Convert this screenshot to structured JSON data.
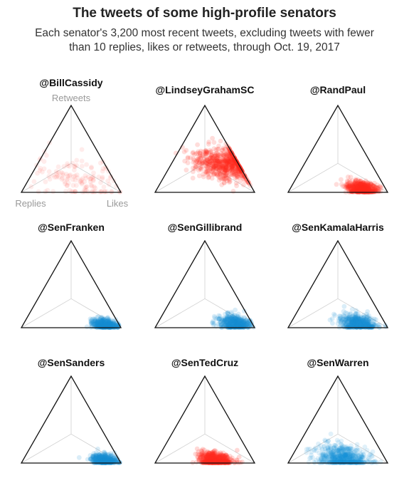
{
  "title": "The tweets of some high-profile senators",
  "subtitle_line1": "Each senator's 3,200 most recent tweets, excluding tweets with fewer",
  "subtitle_line2": "than 10 replies, likes or retweets, through Oct. 19, 2017",
  "axis_labels": {
    "top": "Retweets",
    "left": "Replies",
    "right": "Likes"
  },
  "colors": {
    "republican": "#ff2d1f",
    "democrat": "#1b8fd6"
  },
  "chart_data": [
    {
      "type": "scatter",
      "title": "@BillCassidy",
      "party": "republican",
      "center": [
        0.15,
        0.33,
        0.52
      ],
      "spread": 0.22,
      "count": 140,
      "opacity": 0.09
    },
    {
      "type": "scatter",
      "title": "@LindseyGrahamSC",
      "party": "republican",
      "center": [
        0.32,
        0.13,
        0.55
      ],
      "spread": 0.16,
      "count": 700,
      "opacity": 0.16
    },
    {
      "type": "scatter",
      "title": "@RandPaul",
      "party": "republican",
      "center": [
        0.04,
        0.24,
        0.72
      ],
      "spread": 0.07,
      "count": 600,
      "opacity": 0.16
    },
    {
      "type": "scatter",
      "title": "@SenFranken",
      "party": "democrat",
      "center": [
        0.03,
        0.14,
        0.83
      ],
      "spread": 0.06,
      "count": 500,
      "opacity": 0.16
    },
    {
      "type": "scatter",
      "title": "@SenGillibrand",
      "party": "democrat",
      "center": [
        0.05,
        0.17,
        0.78
      ],
      "spread": 0.08,
      "count": 450,
      "opacity": 0.16
    },
    {
      "type": "scatter",
      "title": "@SenKamalaHarris",
      "party": "democrat",
      "center": [
        0.05,
        0.28,
        0.67
      ],
      "spread": 0.09,
      "count": 450,
      "opacity": 0.16
    },
    {
      "type": "scatter",
      "title": "@SenSanders",
      "party": "democrat",
      "center": [
        0.03,
        0.15,
        0.82
      ],
      "spread": 0.06,
      "count": 500,
      "opacity": 0.16
    },
    {
      "type": "scatter",
      "title": "@SenTedCruz",
      "party": "republican",
      "center": [
        0.03,
        0.38,
        0.59
      ],
      "spread": 0.08,
      "count": 650,
      "opacity": 0.18
    },
    {
      "type": "scatter",
      "title": "@SenWarren",
      "party": "democrat",
      "center": [
        0.06,
        0.42,
        0.52
      ],
      "spread": 0.13,
      "count": 600,
      "opacity": 0.13
    }
  ]
}
